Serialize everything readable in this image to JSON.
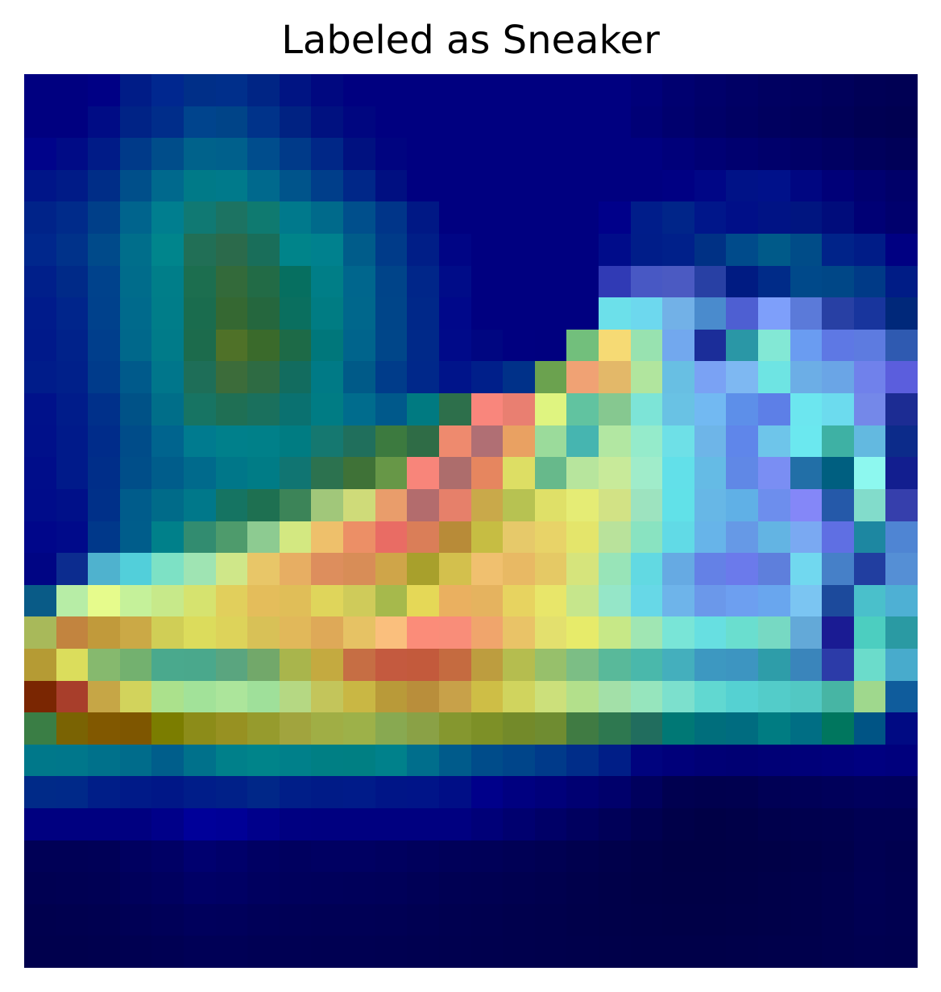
{
  "title": "Labeled as Sneaker",
  "image": {
    "description_type": "grad-cam heatmap overlay on 28x28 grayscale image",
    "grid": {
      "rows": 28,
      "cols": 28
    },
    "color_rows": [
      [
        "#000080",
        "#000080",
        "#000085",
        "#001c87",
        "#00278f",
        "#002f88",
        "#002f8b",
        "#002585",
        "#001483",
        "#000880",
        "#000080",
        "#000080",
        "#000080",
        "#000080",
        "#000080",
        "#000080",
        "#000080",
        "#000080",
        "#000080",
        "#000079",
        "#000070",
        "#00006a",
        "#000065",
        "#000061",
        "#00005f",
        "#00005b",
        "#000056",
        "#000054"
      ],
      [
        "#000080",
        "#000080",
        "#000c85",
        "#002386",
        "#002d8a",
        "#00448d",
        "#004488",
        "#00338a",
        "#002282",
        "#001180",
        "#000680",
        "#000080",
        "#000080",
        "#000080",
        "#000080",
        "#000080",
        "#000080",
        "#000080",
        "#000080",
        "#000076",
        "#00006e",
        "#000068",
        "#000063",
        "#00005f",
        "#00005c",
        "#000058",
        "#000053",
        "#000051"
      ],
      [
        "#00038a",
        "#000b86",
        "#001b87",
        "#003a89",
        "#004d8a",
        "#00628b",
        "#00608c",
        "#004d8d",
        "#003a89",
        "#002787",
        "#001180",
        "#000480",
        "#000080",
        "#000080",
        "#000080",
        "#000080",
        "#000080",
        "#000080",
        "#000080",
        "#000080",
        "#00007a",
        "#000074",
        "#00006f",
        "#00006b",
        "#000067",
        "#000062",
        "#00005c",
        "#000058"
      ],
      [
        "#001588",
        "#001b87",
        "#002d87",
        "#004f8a",
        "#00698d",
        "#007a88",
        "#007a8b",
        "#00698d",
        "#00548b",
        "#003e8a",
        "#002788",
        "#000f81",
        "#000080",
        "#000080",
        "#000080",
        "#000080",
        "#000080",
        "#000080",
        "#000080",
        "#000080",
        "#000083",
        "#000686",
        "#001287",
        "#00118a",
        "#000681",
        "#000078",
        "#000070",
        "#000069"
      ],
      [
        "#002389",
        "#002b8a",
        "#003f89",
        "#00648d",
        "#007e8f",
        "#107973",
        "#1c7362",
        "#0f7a70",
        "#00798c",
        "#006a8b",
        "#004f8c",
        "#003589",
        "#001885",
        "#000080",
        "#000080",
        "#000080",
        "#000080",
        "#000080",
        "#00008a",
        "#001d8a",
        "#002589",
        "#00168a",
        "#000f88",
        "#001385",
        "#001580",
        "#000c7b",
        "#000075",
        "#00006d"
      ],
      [
        "#00278c",
        "#00328a",
        "#004a8a",
        "#006e8b",
        "#00858c",
        "#216f56",
        "#2b6a4b",
        "#196e5a",
        "#00848a",
        "#00818e",
        "#005c8a",
        "#003b89",
        "#001e87",
        "#000585",
        "#000080",
        "#000080",
        "#000080",
        "#000080",
        "#000c8a",
        "#001d89",
        "#00208a",
        "#003185",
        "#004b8b",
        "#005a89",
        "#004c88",
        "#002389",
        "#001c87",
        "#000082"
      ],
      [
        "#001f8a",
        "#002a88",
        "#00428c",
        "#006c8b",
        "#007e89",
        "#1c6e4f",
        "#336a3a",
        "#226b46",
        "#066f60",
        "#007e87",
        "#00668d",
        "#004489",
        "#002689",
        "#000c88",
        "#000080",
        "#000080",
        "#000080",
        "#000080",
        "#303ab5",
        "#4858c4",
        "#4b5ac2",
        "#2840a4",
        "#001b82",
        "#002b88",
        "#00498a",
        "#004787",
        "#003a87",
        "#001c86"
      ],
      [
        "#001b8b",
        "#00258b",
        "#00418c",
        "#006a8c",
        "#007d89",
        "#1a6c4e",
        "#356832",
        "#25673e",
        "#0a6f5f",
        "#007c83",
        "#00678c",
        "#004589",
        "#002889",
        "#00088a",
        "#000080",
        "#000080",
        "#000080",
        "#000080",
        "#6ce0ea",
        "#6dd8ee",
        "#72b1e7",
        "#4a8bcd",
        "#4e5fd2",
        "#7e9ffa",
        "#5b7ad9",
        "#2840a4",
        "#18359d",
        "#00287a"
      ],
      [
        "#00198a",
        "#00228a",
        "#003e8c",
        "#00688b",
        "#007b89",
        "#1c6b4c",
        "#4f7128",
        "#3a6a2b",
        "#1d6a47",
        "#00777b",
        "#00648c",
        "#004689",
        "#002989",
        "#000a89",
        "#000681",
        "#000080",
        "#00007f",
        "#72bf7c",
        "#f6da74",
        "#98e2b0",
        "#72a8ee",
        "#1b2d99",
        "#2a97a6",
        "#83e8d5",
        "#6a9cf1",
        "#5e78e4",
        "#5d7be0",
        "#2f5ab1"
      ],
      [
        "#001c8a",
        "#00208a",
        "#003b8b",
        "#005a8b",
        "#00768b",
        "#1e6e58",
        "#3c6c3a",
        "#2e6b43",
        "#126c5f",
        "#007a86",
        "#005a88",
        "#003c8a",
        "#00288a",
        "#00148a",
        "#001f8a",
        "#003189",
        "#6ba24f",
        "#f0a274",
        "#e3b869",
        "#b1e59e",
        "#68bfe3",
        "#7aa2f4",
        "#7eb8f2",
        "#6ee4e3",
        "#6caee6",
        "#6aa5e6",
        "#7081eb",
        "#5b5edd"
      ],
      [
        "#00118a",
        "#001c8a",
        "#00308a",
        "#005287",
        "#006e89",
        "#177463",
        "#1f6f54",
        "#1a705d",
        "#0a7170",
        "#007c84",
        "#006c8d",
        "#00598b",
        "#007a81",
        "#2d6f4b",
        "#f9867c",
        "#e97f71",
        "#dff480",
        "#61c3a0",
        "#86c890",
        "#7de4d7",
        "#69c2e4",
        "#72b9f2",
        "#5d8fe9",
        "#5d7fe7",
        "#6ce6ef",
        "#6cdbee",
        "#7488e9",
        "#1c2c93"
      ],
      [
        "#00108a",
        "#001a8a",
        "#002c8a",
        "#004c89",
        "#00648e",
        "#007b8f",
        "#00808b",
        "#008089",
        "#007c82",
        "#157870",
        "#206f5c",
        "#3c7a3f",
        "#2f6c46",
        "#ee8a6e",
        "#b06f74",
        "#e9a162",
        "#9bdb9b",
        "#46b5b0",
        "#b2e7a2",
        "#95ebcb",
        "#6ee0e7",
        "#6eb5e8",
        "#5f86ea",
        "#6ec5ea",
        "#6be8ef",
        "#3eb1a4",
        "#63b9e0",
        "#0c2b8a"
      ],
      [
        "#000d8a",
        "#001a8a",
        "#002e89",
        "#004e89",
        "#005d8b",
        "#006a8c",
        "#007789",
        "#007c86",
        "#107572",
        "#2c724f",
        "#3f7237",
        "#679747",
        "#f8857a",
        "#ad6d6c",
        "#e6865f",
        "#ddde64",
        "#67b98b",
        "#b7e59d",
        "#c8ea9a",
        "#a0ecca",
        "#62e0e9",
        "#65bbe5",
        "#6088e6",
        "#7a8ef3",
        "#226fa7",
        "#005f80",
        "#8df8ef",
        "#121e8f"
      ],
      [
        "#000c8a",
        "#001089",
        "#003089",
        "#005c8b",
        "#006b89",
        "#00788a",
        "#157462",
        "#1e7051",
        "#3c8458",
        "#a1c77a",
        "#cfdb79",
        "#e99d6b",
        "#b36c6d",
        "#e6806a",
        "#c9a94a",
        "#b7c252",
        "#dfe068",
        "#e5ec75",
        "#d2e285",
        "#9de3bf",
        "#61e1e8",
        "#67b7e6",
        "#60b0e6",
        "#6d8eed",
        "#8487f8",
        "#2559a9",
        "#82dccb",
        "#363fac"
      ],
      [
        "#00068a",
        "#000a8a",
        "#00388a",
        "#005d8b",
        "#00808a",
        "#328c70",
        "#4e9b6c",
        "#8dcb91",
        "#d3e881",
        "#eec06b",
        "#ec8f66",
        "#e96c64",
        "#da7e58",
        "#b88b38",
        "#c6bd43",
        "#e6c96a",
        "#e8d368",
        "#e4e56b",
        "#b9e29b",
        "#89e3c1",
        "#61dae6",
        "#67b4e9",
        "#6699e6",
        "#63b4e3",
        "#7aa9f2",
        "#5f6fe3",
        "#1d87a1",
        "#4f85d3"
      ],
      [
        "#000584",
        "#0c2c8f",
        "#4fb2ce",
        "#52cfda",
        "#7de1c5",
        "#9fe4b3",
        "#cfe789",
        "#e8c668",
        "#e7ae63",
        "#dd8e5d",
        "#d88d57",
        "#cfa549",
        "#a8a02c",
        "#d3c04d",
        "#f0c06f",
        "#e8b964",
        "#e5c965",
        "#d6e47c",
        "#98e4b8",
        "#62d9e2",
        "#66aae3",
        "#6481e6",
        "#6b7aeb",
        "#5e7fdc",
        "#71d8ef",
        "#4680c8",
        "#213ea0",
        "#558fd5"
      ],
      [
        "#095b87",
        "#b7eda6",
        "#e6fb8c",
        "#c5f19a",
        "#c7e98a",
        "#d6e36f",
        "#e1cf5c",
        "#e4bd5b",
        "#e0be58",
        "#dfd55b",
        "#cfcb5a",
        "#a6b94c",
        "#e5d857",
        "#eab060",
        "#e5b35f",
        "#e7d360",
        "#e8e66a",
        "#c6e68c",
        "#95e6c8",
        "#67d8e7",
        "#6eb4ea",
        "#6b98ea",
        "#6d9ff0",
        "#69a6ee",
        "#7bc5f2",
        "#1c4a9c",
        "#4ac0cb",
        "#4eb0d4"
      ],
      [
        "#a8b95a",
        "#c2843f",
        "#c19a3b",
        "#cba946",
        "#d0ce56",
        "#dcdc5c",
        "#ddd35a",
        "#d8c157",
        "#e1b85a",
        "#dea958",
        "#e6c264",
        "#fabf7d",
        "#fb8c79",
        "#f98d79",
        "#f0a56c",
        "#e9c367",
        "#e3e06e",
        "#e7eb6a",
        "#c7e887",
        "#a0e6b3",
        "#79e5d7",
        "#67dfe1",
        "#6adecf",
        "#77d9c3",
        "#63a9d8",
        "#1a1b93",
        "#4ccec0",
        "#2a9aa3"
      ],
      [
        "#b59b34",
        "#dbdd5c",
        "#86b96e",
        "#73b16f",
        "#4aa98d",
        "#4aa88c",
        "#5aa57f",
        "#72a86a",
        "#a9b54c",
        "#c4aa40",
        "#c66e44",
        "#c45a3f",
        "#c35a3c",
        "#c56b40",
        "#bd9d3f",
        "#b5bd4f",
        "#97c06b",
        "#7cbe85",
        "#59b99a",
        "#4ab8ab",
        "#44afbd",
        "#3d98c1",
        "#3d95c1",
        "#2e9da9",
        "#3a85bb",
        "#2c3ba8",
        "#6bdccb",
        "#48abcc"
      ],
      [
        "#7a2602",
        "#a83e2b",
        "#c6a646",
        "#d2d35c",
        "#abe18c",
        "#a2e299",
        "#ace59b",
        "#9fe09a",
        "#b5d883",
        "#c3c55b",
        "#c9b744",
        "#b99a39",
        "#b98e3b",
        "#c8a149",
        "#cebe46",
        "#d0d45e",
        "#cce07b",
        "#b3e08b",
        "#a3e0a8",
        "#96e5bd",
        "#7ce0cd",
        "#61d8d1",
        "#55d1d2",
        "#53ccc9",
        "#52c8c3",
        "#47b5a4",
        "#9fd88d",
        "#0f5c9c"
      ],
      [
        "#3a7e45",
        "#7a6303",
        "#815800",
        "#7e5600",
        "#7b7d00",
        "#8c8c19",
        "#979122",
        "#969b2d",
        "#a1a43e",
        "#a0ae45",
        "#9db149",
        "#88a951",
        "#8aa146",
        "#85972f",
        "#7d9027",
        "#738a2a",
        "#6f8c31",
        "#407b43",
        "#2e7850",
        "#216d5e",
        "#007875",
        "#006e7c",
        "#006c80",
        "#007c82",
        "#006e84",
        "#00765e",
        "#005485",
        "#000a83"
      ],
      [
        "#00788a",
        "#00778b",
        "#00718b",
        "#006c8b",
        "#005e8b",
        "#00718b",
        "#00808a",
        "#00848a",
        "#00808a",
        "#007f84",
        "#007f83",
        "#00818b",
        "#006e8c",
        "#005b8b",
        "#004c8a",
        "#00458a",
        "#003a8a",
        "#002d89",
        "#001e87",
        "#00037e",
        "#00007a",
        "#000075",
        "#000073",
        "#000076",
        "#000079",
        "#00007c",
        "#000080",
        "#00007d"
      ],
      [
        "#002a88",
        "#002989",
        "#001e88",
        "#001a88",
        "#001787",
        "#001d89",
        "#002088",
        "#002788",
        "#001e88",
        "#001b87",
        "#001b89",
        "#001587",
        "#001488",
        "#000e86",
        "#00008a",
        "#000080",
        "#00007a",
        "#000072",
        "#00006b",
        "#00005d",
        "#000050",
        "#00004e",
        "#00004f",
        "#000055",
        "#000057",
        "#00005a",
        "#00005d",
        "#00005c"
      ],
      [
        "#000080",
        "#000080",
        "#000080",
        "#000080",
        "#000089",
        "#000099",
        "#000096",
        "#00008b",
        "#000081",
        "#000080",
        "#000080",
        "#000080",
        "#000080",
        "#000080",
        "#000078",
        "#00006f",
        "#000067",
        "#00005f",
        "#000058",
        "#000050",
        "#000049",
        "#000046",
        "#000048",
        "#00004c",
        "#00004e",
        "#00004f",
        "#000053",
        "#000053"
      ],
      [
        "#000056",
        "#000056",
        "#000057",
        "#000060",
        "#000065",
        "#00006f",
        "#00006a",
        "#000063",
        "#00005f",
        "#000062",
        "#000062",
        "#00005f",
        "#00005c",
        "#000059",
        "#000058",
        "#000055",
        "#000052",
        "#00004e",
        "#00004b",
        "#000048",
        "#000045",
        "#000045",
        "#000046",
        "#000047",
        "#000049",
        "#00004c",
        "#000052",
        "#00004f"
      ],
      [
        "#000052",
        "#000053",
        "#000054",
        "#00005b",
        "#00005f",
        "#000066",
        "#000064",
        "#00005f",
        "#00005c",
        "#00005b",
        "#00005a",
        "#000059",
        "#000056",
        "#000053",
        "#000052",
        "#000050",
        "#00004e",
        "#00004b",
        "#000049",
        "#000047",
        "#000046",
        "#000046",
        "#000047",
        "#000049",
        "#00004b",
        "#00004e",
        "#000053",
        "#000050"
      ],
      [
        "#00004e",
        "#00004f",
        "#000050",
        "#000055",
        "#000058",
        "#00005c",
        "#00005b",
        "#000058",
        "#000056",
        "#000055",
        "#000055",
        "#000054",
        "#000052",
        "#000050",
        "#00004f",
        "#00004d",
        "#00004c",
        "#00004a",
        "#000049",
        "#000048",
        "#000047",
        "#000047",
        "#000048",
        "#000049",
        "#00004b",
        "#00004e",
        "#000052",
        "#000050"
      ],
      [
        "#00004d",
        "#00004d",
        "#00004e",
        "#000051",
        "#000053",
        "#000056",
        "#000056",
        "#000054",
        "#000053",
        "#000052",
        "#000052",
        "#000051",
        "#000050",
        "#00004f",
        "#00004e",
        "#00004d",
        "#00004c",
        "#00004b",
        "#00004a",
        "#000049",
        "#000049",
        "#000049",
        "#00004a",
        "#00004b",
        "#00004c",
        "#00004e",
        "#000050",
        "#00004f"
      ]
    ]
  }
}
